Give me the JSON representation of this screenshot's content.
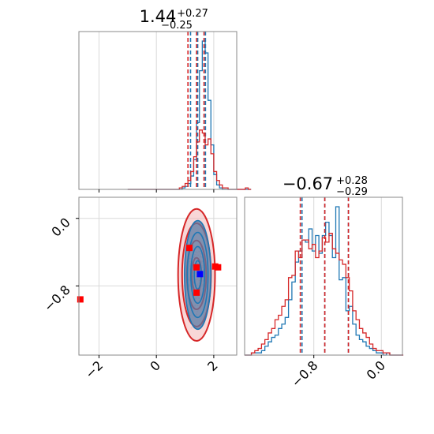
{
  "colors": {
    "series_a": "#1f77b4",
    "series_b": "#d62728",
    "grid": "#d9d9d9",
    "frame": "#888888"
  },
  "chart_data": [
    {
      "type": "step-histogram",
      "panel": "top-left",
      "title": {
        "value": "1.44",
        "plus": "+0.27",
        "minus": "−0.25"
      },
      "xlim": [
        -2.7,
        2.8
      ],
      "grid_x": [
        -2,
        0,
        2
      ],
      "bin_width": 0.1,
      "x_start": -1.0,
      "series": [
        {
          "color": "#1f77b4",
          "quantiles": [
            1.19,
            1.44,
            1.71
          ],
          "values": [
            0,
            0,
            0,
            0,
            0,
            0,
            0,
            0,
            0,
            0,
            0,
            0,
            0,
            0,
            0,
            0,
            0,
            0,
            0,
            1,
            2,
            4,
            9,
            20,
            45,
            80,
            100,
            92,
            60,
            30,
            10,
            3,
            1,
            0,
            0,
            0,
            0,
            0,
            0,
            0,
            0,
            0,
            0
          ]
        },
        {
          "color": "#d62728",
          "quantiles": [
            1.1,
            1.4,
            1.66
          ],
          "values": [
            0,
            0,
            0,
            0,
            0,
            0,
            0,
            0,
            0,
            0,
            0,
            0,
            0,
            0,
            0,
            0,
            0,
            0,
            1,
            2,
            4,
            6,
            12,
            22,
            32,
            40,
            38,
            30,
            34,
            24,
            12,
            6,
            3,
            1,
            1,
            0,
            0,
            0,
            0,
            0,
            0,
            1,
            0
          ]
        }
      ]
    },
    {
      "type": "contour",
      "panel": "bottom-left",
      "xlim": [
        -2.7,
        2.8
      ],
      "ylim": [
        -1.62,
        0.25
      ],
      "x_ticks": [
        -2,
        0,
        2
      ],
      "y_ticks": [
        0.0,
        -0.8
      ],
      "x_tick_labels": [
        "−2",
        "0",
        "2"
      ],
      "y_tick_labels": [
        "0.0",
        "−0.8"
      ],
      "grid_x": [
        -2,
        0,
        2
      ],
      "grid_y": [
        0.0,
        -0.8
      ],
      "series": [
        {
          "color": "#1f77b4",
          "center": [
            1.44,
            -0.67
          ],
          "sigma": [
            0.2,
            0.28
          ],
          "fill": "#5a7aa3"
        },
        {
          "color": "#d62728",
          "center": [
            1.4,
            -0.67
          ],
          "sigma": [
            0.28,
            0.34
          ],
          "fill": "#f3b6b6"
        }
      ],
      "points": [
        {
          "x": -2.65,
          "y": -0.96,
          "color": "#ff0000"
        },
        {
          "x": 1.15,
          "y": -0.35,
          "color": "#ff0000"
        },
        {
          "x": 1.4,
          "y": -0.58,
          "color": "#ff0000"
        },
        {
          "x": 1.4,
          "y": -0.88,
          "color": "#ff0000"
        },
        {
          "x": 2.05,
          "y": -0.57,
          "color": "#ff0000"
        },
        {
          "x": 2.15,
          "y": -0.58,
          "color": "#ff0000"
        },
        {
          "x": 1.52,
          "y": -0.66,
          "color": "#0000ff"
        }
      ]
    },
    {
      "type": "step-histogram",
      "panel": "bottom-right",
      "title": {
        "value": "−0.67",
        "plus": "+0.28",
        "minus": "−0.29"
      },
      "xlim": [
        -1.62,
        0.25
      ],
      "x_ticks": [
        -0.8,
        0.0
      ],
      "x_tick_labels": [
        "−0.8",
        "0.0"
      ],
      "grid_x": [
        -0.8,
        0.0
      ],
      "bin_width": 0.04,
      "x_start": -1.62,
      "series": [
        {
          "color": "#1f77b4",
          "quantiles": [
            -0.94,
            -0.67,
            -0.39
          ],
          "values": [
            0,
            0,
            1,
            1,
            1,
            2,
            4,
            6,
            8,
            9,
            12,
            14,
            17,
            25,
            33,
            42,
            47,
            52,
            51,
            57,
            47,
            54,
            46,
            54,
            60,
            54,
            44,
            67,
            34,
            35,
            20,
            22,
            14,
            9,
            7,
            6,
            4,
            3,
            2,
            1,
            1,
            0,
            1,
            0,
            0,
            0,
            0
          ]
        },
        {
          "color": "#d62728",
          "quantiles": [
            -0.96,
            -0.67,
            -0.39
          ],
          "values": [
            0,
            0,
            1,
            2,
            3,
            5,
            7,
            10,
            12,
            16,
            18,
            22,
            25,
            35,
            36,
            47,
            44,
            52,
            52,
            48,
            50,
            44,
            47,
            53,
            51,
            55,
            48,
            46,
            43,
            41,
            35,
            29,
            20,
            16,
            12,
            10,
            8,
            5,
            3,
            2,
            2,
            1,
            1,
            0,
            0,
            0,
            0
          ]
        }
      ]
    }
  ]
}
